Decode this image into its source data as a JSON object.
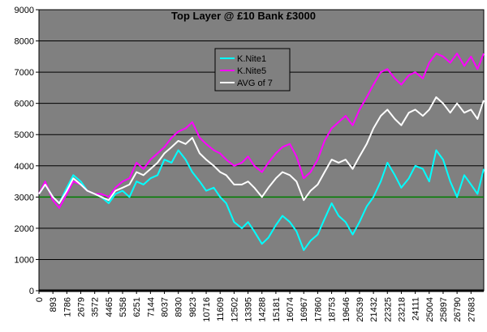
{
  "chart_data": {
    "type": "line",
    "title": "Top Layer @ £10  Bank £3000",
    "xlabel": "",
    "ylabel": "",
    "ylim": [
      0,
      9000
    ],
    "yticks": [
      0,
      1000,
      2000,
      3000,
      4000,
      5000,
      6000,
      7000,
      8000,
      9000
    ],
    "xlim": [
      0,
      28500
    ],
    "xticks": [
      0,
      893,
      1786,
      2679,
      3572,
      4465,
      5358,
      6251,
      7144,
      8037,
      8930,
      9823,
      10716,
      11609,
      12502,
      13395,
      14288,
      15181,
      16074,
      16967,
      17860,
      18753,
      19646,
      20539,
      21432,
      22325,
      23218,
      24111,
      25004,
      25897,
      26790,
      27683
    ],
    "grid": true,
    "legend_position": "top-center",
    "plot_background": "#808080",
    "baseline": {
      "value": 3000,
      "color": "#008000"
    },
    "series": [
      {
        "name": "K.Nite1",
        "color": "#00FFFF",
        "x": [
          0,
          400,
          893,
          1300,
          1786,
          2200,
          2679,
          3100,
          3572,
          4000,
          4465,
          4900,
          5358,
          5800,
          6251,
          6700,
          7144,
          7600,
          8037,
          8500,
          8930,
          9400,
          9823,
          10300,
          10716,
          11200,
          11609,
          12000,
          12502,
          13000,
          13395,
          13800,
          14288,
          14700,
          15181,
          15600,
          16074,
          16500,
          16967,
          17400,
          17860,
          18300,
          18753,
          19200,
          19646,
          20100,
          20539,
          21000,
          21432,
          21900,
          22325,
          22800,
          23218,
          23700,
          24111,
          24600,
          25004,
          25450,
          25897,
          26350,
          26790,
          27250,
          27683,
          28100,
          28500
        ],
        "values": [
          3100,
          3400,
          3000,
          2800,
          3300,
          3700,
          3500,
          3200,
          3100,
          3000,
          2800,
          3100,
          3200,
          3000,
          3500,
          3400,
          3600,
          3700,
          4200,
          4100,
          4500,
          4200,
          3800,
          3500,
          3200,
          3300,
          3000,
          2800,
          2200,
          2000,
          2200,
          1900,
          1500,
          1700,
          2100,
          2400,
          2200,
          1900,
          1300,
          1600,
          1800,
          2300,
          2800,
          2400,
          2200,
          1800,
          2200,
          2700,
          3000,
          3500,
          4100,
          3700,
          3300,
          3600,
          4000,
          3900,
          3500,
          4500,
          4200,
          3500,
          3000,
          3700,
          3400,
          3100,
          3900
        ]
      },
      {
        "name": "K.Nite5",
        "color": "#FF00FF",
        "x": [
          0,
          400,
          893,
          1300,
          1786,
          2200,
          2679,
          3100,
          3572,
          4000,
          4465,
          4900,
          5358,
          5800,
          6251,
          6700,
          7144,
          7600,
          8037,
          8500,
          8930,
          9400,
          9823,
          10300,
          10716,
          11200,
          11609,
          12000,
          12502,
          13000,
          13395,
          13800,
          14288,
          14700,
          15181,
          15600,
          16074,
          16500,
          16967,
          17400,
          17860,
          18300,
          18753,
          19200,
          19646,
          20100,
          20539,
          21000,
          21432,
          21900,
          22325,
          22800,
          23218,
          23700,
          24111,
          24600,
          25004,
          25450,
          25897,
          26350,
          26790,
          27250,
          27683,
          28100,
          28500
        ],
        "values": [
          3100,
          3500,
          2900,
          2650,
          3100,
          3500,
          3400,
          3200,
          3100,
          3100,
          3000,
          3300,
          3500,
          3600,
          4100,
          3900,
          4200,
          4400,
          4600,
          4900,
          5100,
          5200,
          5400,
          4900,
          4700,
          4500,
          4400,
          4200,
          4000,
          4100,
          4300,
          4000,
          3800,
          4100,
          4400,
          4600,
          4700,
          4300,
          3600,
          3800,
          4200,
          4800,
          5200,
          5400,
          5600,
          5300,
          5800,
          6200,
          6600,
          7000,
          7100,
          6800,
          6600,
          6900,
          7000,
          6800,
          7300,
          7600,
          7500,
          7300,
          7600,
          7200,
          7500,
          7100,
          7600
        ]
      },
      {
        "name": "AVG of 7",
        "color": "#FFFFFF",
        "x": [
          0,
          400,
          893,
          1300,
          1786,
          2200,
          2679,
          3100,
          3572,
          4000,
          4465,
          4900,
          5358,
          5800,
          6251,
          6700,
          7144,
          7600,
          8037,
          8500,
          8930,
          9400,
          9823,
          10300,
          10716,
          11200,
          11609,
          12000,
          12502,
          13000,
          13395,
          13800,
          14288,
          14700,
          15181,
          15600,
          16074,
          16500,
          16967,
          17400,
          17860,
          18300,
          18753,
          19200,
          19646,
          20100,
          20539,
          21000,
          21432,
          21900,
          22325,
          22800,
          23218,
          23700,
          24111,
          24600,
          25004,
          25450,
          25897,
          26350,
          26790,
          27250,
          27683,
          28100,
          28500
        ],
        "values": [
          3100,
          3400,
          3000,
          2800,
          3200,
          3600,
          3400,
          3200,
          3100,
          3000,
          2900,
          3200,
          3300,
          3400,
          3800,
          3700,
          3900,
          4100,
          4400,
          4600,
          4800,
          4700,
          4900,
          4400,
          4200,
          4000,
          3800,
          3700,
          3400,
          3400,
          3500,
          3300,
          3000,
          3300,
          3600,
          3800,
          3700,
          3500,
          2900,
          3200,
          3400,
          3800,
          4200,
          4100,
          4200,
          3900,
          4300,
          4700,
          5200,
          5600,
          5800,
          5500,
          5300,
          5700,
          5800,
          5600,
          5800,
          6200,
          6000,
          5700,
          6000,
          5700,
          5800,
          5500,
          6100
        ]
      }
    ]
  }
}
